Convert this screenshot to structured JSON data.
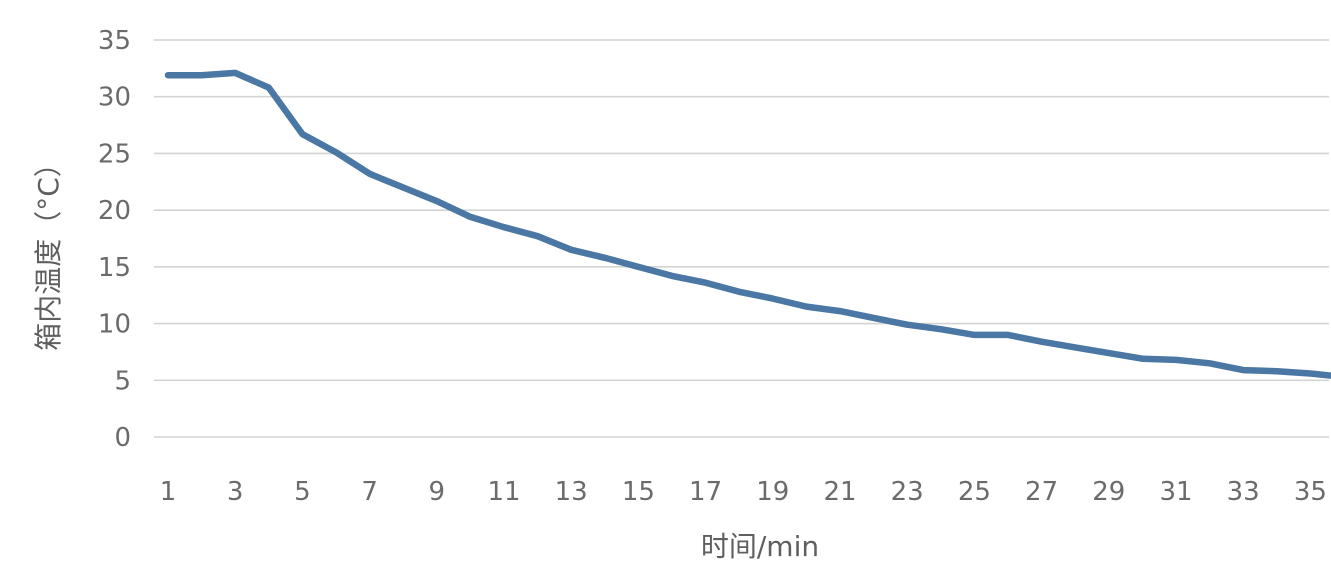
{
  "chart_data": {
    "type": "line",
    "title": "",
    "xlabel": "时间/min",
    "ylabel": "箱内温度（°C）",
    "x_tick_labels": [
      "1",
      "3",
      "5",
      "7",
      "9",
      "11",
      "13",
      "15",
      "17",
      "19",
      "21",
      "23",
      "25",
      "27",
      "29",
      "31",
      "33",
      "35"
    ],
    "y_tick_labels": [
      "0",
      "5",
      "10",
      "15",
      "20",
      "25",
      "30",
      "35"
    ],
    "xlim": [
      1,
      36
    ],
    "ylim": [
      0,
      35
    ],
    "grid": true,
    "legend": "none",
    "colors": {
      "series": "#4a77a3",
      "grid": "#d4d4d4",
      "text": "#6b6b6b"
    },
    "series": [
      {
        "x": [
          1,
          2,
          3,
          4,
          5,
          6,
          7,
          8,
          9,
          10,
          11,
          12,
          13,
          14,
          15,
          16,
          17,
          18,
          19,
          20,
          21,
          22,
          23,
          24,
          25,
          26,
          27,
          28,
          29,
          30,
          31,
          32,
          33,
          34,
          35,
          36
        ],
        "values": [
          31.9,
          31.9,
          32.1,
          30.8,
          26.7,
          25.1,
          23.2,
          22.0,
          20.8,
          19.4,
          18.5,
          17.7,
          16.5,
          15.8,
          15.0,
          14.2,
          13.6,
          12.8,
          12.2,
          11.5,
          11.1,
          10.5,
          9.9,
          9.5,
          9.0,
          9.0,
          8.4,
          7.9,
          7.4,
          6.9,
          6.8,
          6.5,
          5.9,
          5.8,
          5.6,
          5.3
        ]
      }
    ]
  }
}
